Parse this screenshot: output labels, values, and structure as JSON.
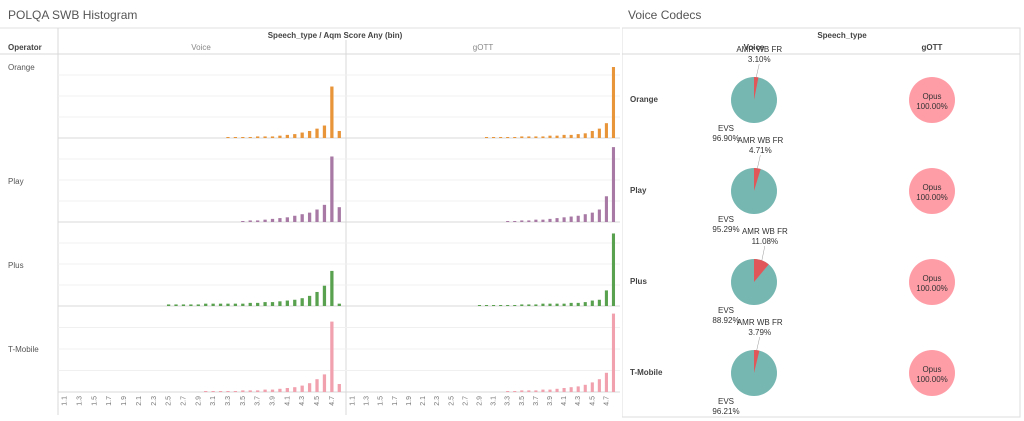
{
  "left_title": "POLQA SWB Histogram",
  "right_title": "Voice Codecs",
  "colors": {
    "Orange": "#E8953A",
    "Play": "#A779A4",
    "Plus": "#59A14F",
    "T-Mobile": "#F1A0AE",
    "pie_main": "#76B7B2",
    "pie_minor": "#E15759",
    "pie_opus": "#FF9DA7"
  },
  "chart_data": [
    {
      "type": "bar",
      "title": "POLQA SWB Histogram",
      "column_header": "Speech_type / Aqm Score Any (bin)",
      "row_header": "Operator",
      "columns": [
        "Voice",
        "gOTT"
      ],
      "rows": [
        "Orange",
        "Play",
        "Plus",
        "T-Mobile"
      ],
      "x_ticks": [
        "1.1",
        "1.3",
        "1.5",
        "1.7",
        "1.9",
        "2.1",
        "2.3",
        "2.5",
        "2.7",
        "2.9",
        "3.1",
        "3.3",
        "3.5",
        "3.7",
        "3.9",
        "4.1",
        "4.3",
        "4.5",
        "4.7"
      ],
      "bin_start": 1.1,
      "bin_step": 0.1,
      "ylim": [
        0,
        1
      ],
      "series": [
        {
          "operator": "Orange",
          "speech_type": "Voice",
          "values": [
            0,
            0,
            0,
            0,
            0,
            0,
            0,
            0,
            0,
            0,
            0,
            0,
            0,
            0,
            0,
            0,
            0,
            0,
            0,
            0,
            0,
            0,
            0.01,
            0.01,
            0.01,
            0.01,
            0.02,
            0.02,
            0.02,
            0.03,
            0.04,
            0.05,
            0.07,
            0.09,
            0.12,
            0.16,
            0.66,
            0.09
          ]
        },
        {
          "operator": "Orange",
          "speech_type": "gOTT",
          "values": [
            0,
            0,
            0,
            0,
            0,
            0,
            0,
            0,
            0,
            0,
            0,
            0,
            0,
            0,
            0,
            0,
            0,
            0,
            0,
            0.01,
            0.01,
            0.01,
            0.01,
            0.01,
            0.02,
            0.02,
            0.02,
            0.02,
            0.03,
            0.03,
            0.04,
            0.04,
            0.05,
            0.06,
            0.09,
            0.12,
            0.19,
            0.91
          ]
        },
        {
          "operator": "Play",
          "speech_type": "Voice",
          "values": [
            0,
            0,
            0,
            0,
            0,
            0,
            0,
            0,
            0,
            0,
            0,
            0,
            0,
            0,
            0,
            0,
            0,
            0,
            0,
            0,
            0,
            0,
            0,
            0,
            0.01,
            0.02,
            0.02,
            0.03,
            0.04,
            0.05,
            0.06,
            0.08,
            0.1,
            0.12,
            0.16,
            0.22,
            0.84,
            0.19
          ]
        },
        {
          "operator": "Play",
          "speech_type": "gOTT",
          "values": [
            0,
            0,
            0,
            0,
            0,
            0,
            0,
            0,
            0,
            0,
            0,
            0,
            0,
            0,
            0,
            0,
            0,
            0,
            0,
            0,
            0,
            0,
            0.01,
            0.01,
            0.02,
            0.02,
            0.03,
            0.03,
            0.04,
            0.05,
            0.06,
            0.07,
            0.08,
            0.1,
            0.12,
            0.16,
            0.33,
            0.96
          ]
        },
        {
          "operator": "Plus",
          "speech_type": "Voice",
          "values": [
            0,
            0,
            0,
            0,
            0,
            0,
            0,
            0,
            0,
            0,
            0,
            0,
            0,
            0,
            0.02,
            0.02,
            0.02,
            0.02,
            0.02,
            0.03,
            0.03,
            0.03,
            0.03,
            0.03,
            0.03,
            0.04,
            0.04,
            0.05,
            0.05,
            0.06,
            0.07,
            0.08,
            0.1,
            0.13,
            0.18,
            0.26,
            0.45,
            0.03
          ]
        },
        {
          "operator": "Plus",
          "speech_type": "gOTT",
          "values": [
            0,
            0,
            0,
            0,
            0,
            0,
            0,
            0,
            0,
            0,
            0,
            0,
            0,
            0,
            0,
            0,
            0,
            0,
            0.01,
            0.01,
            0.01,
            0.01,
            0.01,
            0.01,
            0.02,
            0.02,
            0.02,
            0.03,
            0.03,
            0.03,
            0.03,
            0.04,
            0.04,
            0.05,
            0.07,
            0.08,
            0.2,
            0.93
          ]
        },
        {
          "operator": "T-Mobile",
          "speech_type": "Voice",
          "values": [
            0,
            0,
            0,
            0,
            0,
            0,
            0,
            0,
            0,
            0,
            0,
            0,
            0,
            0,
            0,
            0,
            0,
            0,
            0,
            0.01,
            0.01,
            0.01,
            0.01,
            0.01,
            0.02,
            0.02,
            0.02,
            0.03,
            0.03,
            0.04,
            0.05,
            0.06,
            0.08,
            0.11,
            0.16,
            0.22,
            0.88,
            0.1
          ]
        },
        {
          "operator": "T-Mobile",
          "speech_type": "gOTT",
          "values": [
            0,
            0,
            0,
            0,
            0,
            0,
            0,
            0,
            0,
            0,
            0,
            0,
            0,
            0,
            0,
            0,
            0,
            0,
            0,
            0,
            0,
            0,
            0.01,
            0.01,
            0.02,
            0.02,
            0.02,
            0.03,
            0.03,
            0.04,
            0.05,
            0.06,
            0.07,
            0.09,
            0.12,
            0.16,
            0.24,
            0.98
          ]
        }
      ]
    },
    {
      "type": "pie",
      "title": "Voice Codecs",
      "column_header": "Speech_type",
      "columns": [
        "Voice",
        "gOTT"
      ],
      "rows": [
        "Orange",
        "Play",
        "Plus",
        "T-Mobile"
      ],
      "series": [
        {
          "operator": "Orange",
          "speech_type": "Voice",
          "slices": [
            {
              "label": "AMR WB FR",
              "value": 3.1,
              "text": "3.10%"
            },
            {
              "label": "EVS",
              "value": 96.9,
              "text": "96.90%"
            }
          ]
        },
        {
          "operator": "Orange",
          "speech_type": "gOTT",
          "slices": [
            {
              "label": "Opus",
              "value": 100.0,
              "text": "100.00%"
            }
          ]
        },
        {
          "operator": "Play",
          "speech_type": "Voice",
          "slices": [
            {
              "label": "AMR WB FR",
              "value": 4.71,
              "text": "4.71%"
            },
            {
              "label": "EVS",
              "value": 95.29,
              "text": "95.29%"
            }
          ]
        },
        {
          "operator": "Play",
          "speech_type": "gOTT",
          "slices": [
            {
              "label": "Opus",
              "value": 100.0,
              "text": "100.00%"
            }
          ]
        },
        {
          "operator": "Plus",
          "speech_type": "Voice",
          "slices": [
            {
              "label": "AMR WB FR",
              "value": 11.08,
              "text": "11.08%"
            },
            {
              "label": "EVS",
              "value": 88.92,
              "text": "88.92%"
            }
          ]
        },
        {
          "operator": "Plus",
          "speech_type": "gOTT",
          "slices": [
            {
              "label": "Opus",
              "value": 100.0,
              "text": "100.00%"
            }
          ]
        },
        {
          "operator": "T-Mobile",
          "speech_type": "Voice",
          "slices": [
            {
              "label": "AMR WB FR",
              "value": 3.79,
              "text": "3.79%"
            },
            {
              "label": "EVS",
              "value": 96.21,
              "text": "96.21%"
            }
          ]
        },
        {
          "operator": "T-Mobile",
          "speech_type": "gOTT",
          "slices": [
            {
              "label": "Opus",
              "value": 100.0,
              "text": "100.00%"
            }
          ]
        }
      ]
    }
  ]
}
